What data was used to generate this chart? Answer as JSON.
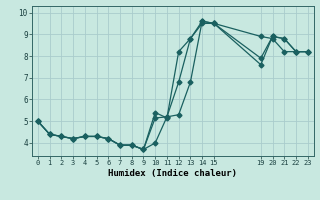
{
  "title": "",
  "xlabel": "Humidex (Indice chaleur)",
  "ylabel": "",
  "bg_color": "#c8e8e0",
  "grid_color": "#aacccc",
  "line_color": "#1a6060",
  "xlim": [
    -0.5,
    23.5
  ],
  "ylim": [
    3.4,
    10.3
  ],
  "xtick_vals": [
    0,
    1,
    2,
    3,
    4,
    5,
    6,
    7,
    8,
    9,
    10,
    11,
    12,
    13,
    14,
    15,
    19,
    20,
    21,
    22,
    23
  ],
  "ytick_vals": [
    4,
    5,
    6,
    7,
    8,
    9,
    10
  ],
  "line1_x": [
    0,
    1,
    2,
    3,
    4,
    5,
    6,
    7,
    8,
    9,
    10,
    11,
    12,
    13,
    14,
    15,
    19,
    20,
    21,
    22,
    23
  ],
  "line1_y": [
    5.0,
    4.4,
    4.3,
    4.2,
    4.3,
    4.3,
    4.2,
    3.9,
    3.9,
    3.7,
    4.0,
    5.2,
    5.3,
    6.8,
    9.6,
    9.5,
    8.9,
    8.8,
    8.2,
    8.2,
    8.2
  ],
  "line2_x": [
    0,
    1,
    2,
    3,
    4,
    5,
    6,
    7,
    8,
    9,
    10,
    11,
    12,
    13,
    14,
    15,
    19,
    20,
    21,
    22,
    23
  ],
  "line2_y": [
    5.0,
    4.4,
    4.3,
    4.2,
    4.3,
    4.3,
    4.2,
    3.9,
    3.9,
    3.7,
    5.4,
    5.15,
    8.2,
    8.8,
    9.6,
    9.5,
    7.6,
    8.9,
    8.8,
    8.2,
    8.2
  ],
  "line3_x": [
    0,
    1,
    2,
    3,
    4,
    5,
    6,
    7,
    8,
    9,
    10,
    11,
    12,
    13,
    14,
    15,
    19,
    20,
    21,
    22,
    23
  ],
  "line3_y": [
    5.0,
    4.4,
    4.3,
    4.2,
    4.3,
    4.3,
    4.2,
    3.9,
    3.9,
    3.7,
    5.15,
    5.2,
    6.8,
    8.8,
    9.5,
    9.5,
    7.9,
    8.9,
    8.8,
    8.2,
    8.2
  ]
}
